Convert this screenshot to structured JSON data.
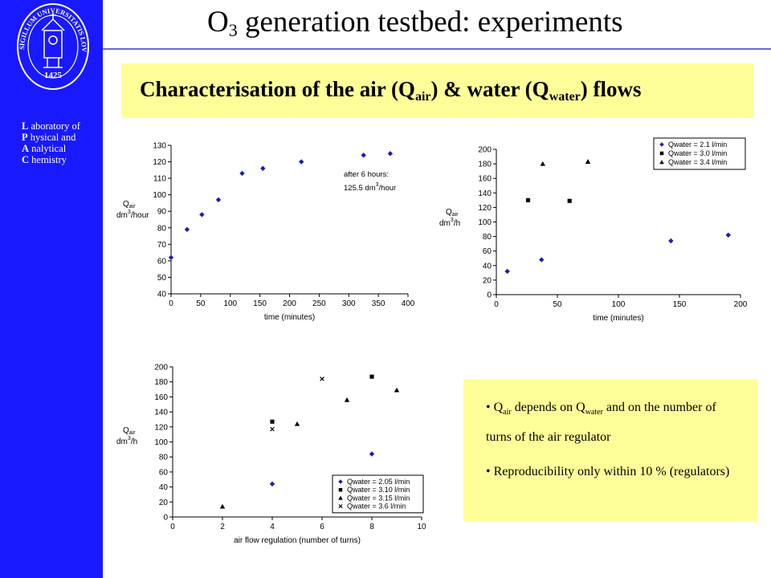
{
  "sidebar": {
    "seal_text": "SIGILLUM UNIVERSITATIS LOVANIENSIS",
    "seal_year": "1425",
    "lab_lines": [
      {
        "initial": "L",
        "rest": " aboratory of"
      },
      {
        "initial": "P",
        "rest": " hysical and"
      },
      {
        "initial": "A",
        "rest": " nalytical"
      },
      {
        "initial": "C",
        "rest": " hemistry"
      }
    ]
  },
  "title": {
    "pre": "O",
    "sub": "3",
    "post": " generation testbed: experiments"
  },
  "banner": {
    "p1": "Characterisation of the air (Q",
    "s1": "air",
    "p2": ") & water (Q",
    "s2": "water",
    "p3": ") flows"
  },
  "notes": {
    "n1": {
      "q": "Q",
      "s1": "air",
      "mid": " depends on Q",
      "s2": "water",
      "rest": " and on the number of turns of the air regulator"
    },
    "n2": "Reproducibility only within 10 % (regulators)"
  },
  "colors": {
    "sidebar": "#1919ff",
    "banner": "#ffff99",
    "diamond": "#1c1cb4",
    "square": "#000000",
    "triangle": "#000000",
    "cross": "#000000"
  },
  "chart_data": [
    {
      "type": "scatter",
      "ylabel_q": "Q",
      "ylabel_sub": "air",
      "ylabel_unit": "dm",
      "ylabel_exp": "3",
      "ylabel_tail": "/hour",
      "xlabel": "time (minutes)",
      "xlim": [
        0,
        400
      ],
      "ylim": [
        40,
        130
      ],
      "xticks": [
        0,
        50,
        100,
        150,
        200,
        250,
        300,
        350,
        400
      ],
      "yticks": [
        40,
        50,
        60,
        70,
        80,
        90,
        100,
        110,
        120,
        130
      ],
      "annotation": {
        "line1": "after 6 hours:",
        "line2_pre": "125.5 dm",
        "line2_exp": "3",
        "line2_post": "/hour"
      },
      "series": [
        {
          "marker": "diamond",
          "x": [
            0,
            27,
            52,
            80,
            120,
            155,
            220,
            325,
            370
          ],
          "y": [
            62,
            79,
            88,
            97,
            113,
            116,
            120,
            124,
            125
          ]
        }
      ]
    },
    {
      "type": "scatter",
      "ylabel_q": "Q",
      "ylabel_sub": "air",
      "ylabel_unit": "dm",
      "ylabel_exp": "3",
      "ylabel_tail": "/h",
      "xlabel": "time (minutes)",
      "xlim": [
        0,
        200
      ],
      "ylim": [
        0,
        200
      ],
      "xticks": [
        0,
        50,
        100,
        150,
        200
      ],
      "yticks": [
        0,
        20,
        40,
        60,
        80,
        100,
        120,
        140,
        160,
        180,
        200
      ],
      "legend": "top-right",
      "series": [
        {
          "name": "Qwater = 2.1 l/min",
          "marker": "diamond",
          "x": [
            9,
            37,
            143,
            190
          ],
          "y": [
            32,
            48,
            74,
            82
          ]
        },
        {
          "name": "Qwater = 3.0 l/min",
          "marker": "square",
          "x": [
            26,
            60
          ],
          "y": [
            130,
            129
          ]
        },
        {
          "name": "Qwater = 3.4 l/min",
          "marker": "triangle",
          "x": [
            38,
            75
          ],
          "y": [
            180,
            183
          ]
        }
      ]
    },
    {
      "type": "scatter",
      "ylabel_q": "Q",
      "ylabel_sub": "air",
      "ylabel_unit": "dm",
      "ylabel_exp": "3",
      "ylabel_tail": "/h",
      "xlabel": "air flow regulation (number of turns)",
      "xlim": [
        0,
        10
      ],
      "ylim": [
        0,
        200
      ],
      "xticks": [
        0,
        2,
        4,
        6,
        8,
        10
      ],
      "yticks": [
        0,
        20,
        40,
        60,
        80,
        100,
        120,
        140,
        160,
        180,
        200
      ],
      "legend": "bottom-right",
      "series": [
        {
          "name": "Qwater = 2.05 l/min",
          "marker": "diamond",
          "x": [
            4,
            8
          ],
          "y": [
            44,
            84
          ]
        },
        {
          "name": "Qwater = 3.10 l/min",
          "marker": "square",
          "x": [
            4,
            8
          ],
          "y": [
            127,
            187
          ]
        },
        {
          "name": "Qwater = 3.15 l/min",
          "marker": "triangle",
          "x": [
            2,
            5,
            7,
            9
          ],
          "y": [
            14,
            124,
            156,
            169
          ]
        },
        {
          "name": "Qwater = 3.6 l/min",
          "marker": "cross",
          "x": [
            4,
            6
          ],
          "y": [
            117,
            184
          ]
        }
      ]
    }
  ]
}
